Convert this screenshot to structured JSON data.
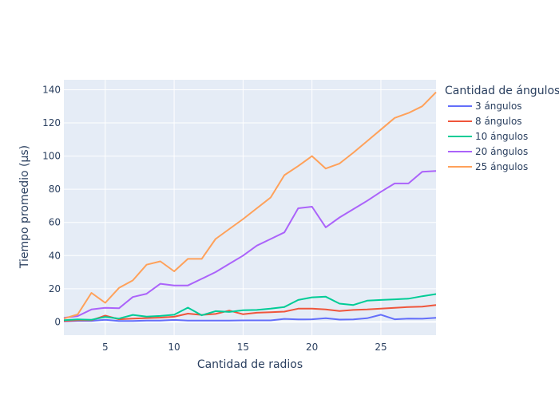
{
  "chart_data": {
    "type": "line",
    "title": "",
    "xlabel": "Cantidad de radios",
    "ylabel": "Tiempo promedio (μs)",
    "xlim": [
      2,
      29
    ],
    "ylim": [
      -8,
      146
    ],
    "xticks": [
      5,
      10,
      15,
      20,
      25
    ],
    "yticks": [
      0,
      20,
      40,
      60,
      80,
      100,
      120,
      140
    ],
    "grid": true,
    "legend_title": "Cantidad de ángulos",
    "legend_position": "top-right outside",
    "x": [
      2,
      3,
      4,
      5,
      6,
      7,
      8,
      9,
      10,
      11,
      12,
      13,
      14,
      15,
      16,
      17,
      18,
      19,
      20,
      21,
      22,
      23,
      24,
      25,
      26,
      27,
      28,
      29
    ],
    "series": [
      {
        "name": "3 ángulos",
        "color": "#636efa",
        "values": [
          0.3,
          0.6,
          0.6,
          1.3,
          0.5,
          0.5,
          0.8,
          0.8,
          1.2,
          0.8,
          0.8,
          0.8,
          0.8,
          0.9,
          0.9,
          0.9,
          1.8,
          1.5,
          1.6,
          2.2,
          1.4,
          1.5,
          2.2,
          4.3,
          1.6,
          2.0,
          1.9,
          2.5
        ]
      },
      {
        "name": "8 ángulos",
        "color": "#EF553B",
        "values": [
          0.5,
          1.0,
          1.0,
          3.8,
          1.6,
          2.0,
          2.3,
          2.6,
          3.1,
          5.0,
          4.2,
          4.8,
          6.8,
          4.6,
          5.5,
          5.8,
          6.2,
          8.0,
          8.0,
          7.5,
          6.6,
          7.2,
          7.5,
          8.0,
          8.5,
          9.0,
          9.2,
          10.2
        ]
      },
      {
        "name": "10 ángulos",
        "color": "#00cc96",
        "values": [
          1.0,
          1.5,
          1.3,
          3.0,
          2.0,
          4.2,
          3.2,
          3.6,
          4.3,
          8.6,
          4.0,
          6.5,
          6.0,
          7.0,
          7.2,
          8.0,
          9.0,
          13.2,
          14.8,
          15.2,
          11.0,
          10.2,
          12.8,
          13.2,
          13.6,
          14.0,
          15.5,
          16.8
        ]
      },
      {
        "name": "20 ángulos",
        "color": "#ab63fa",
        "values": [
          2.5,
          3.5,
          7.5,
          8.5,
          8.2,
          15.0,
          17.0,
          23.0,
          22.0,
          22.0,
          26.0,
          30.0,
          35.0,
          40.0,
          46.0,
          50.0,
          54.0,
          68.5,
          69.5,
          57.0,
          63.0,
          68.0,
          73.0,
          78.5,
          83.5,
          83.5,
          90.5,
          91.0
        ]
      },
      {
        "name": "25 ángulos",
        "color": "#FFA15A",
        "values": [
          2.0,
          4.5,
          17.5,
          11.5,
          20.5,
          25.0,
          34.5,
          36.5,
          30.5,
          38.0,
          38.0,
          50.0,
          56.0,
          62.0,
          68.5,
          75.0,
          88.5,
          94.0,
          100.0,
          92.5,
          95.5,
          102.0,
          109.0,
          116.0,
          123.0,
          126.0,
          130.0,
          138.5
        ]
      }
    ]
  }
}
